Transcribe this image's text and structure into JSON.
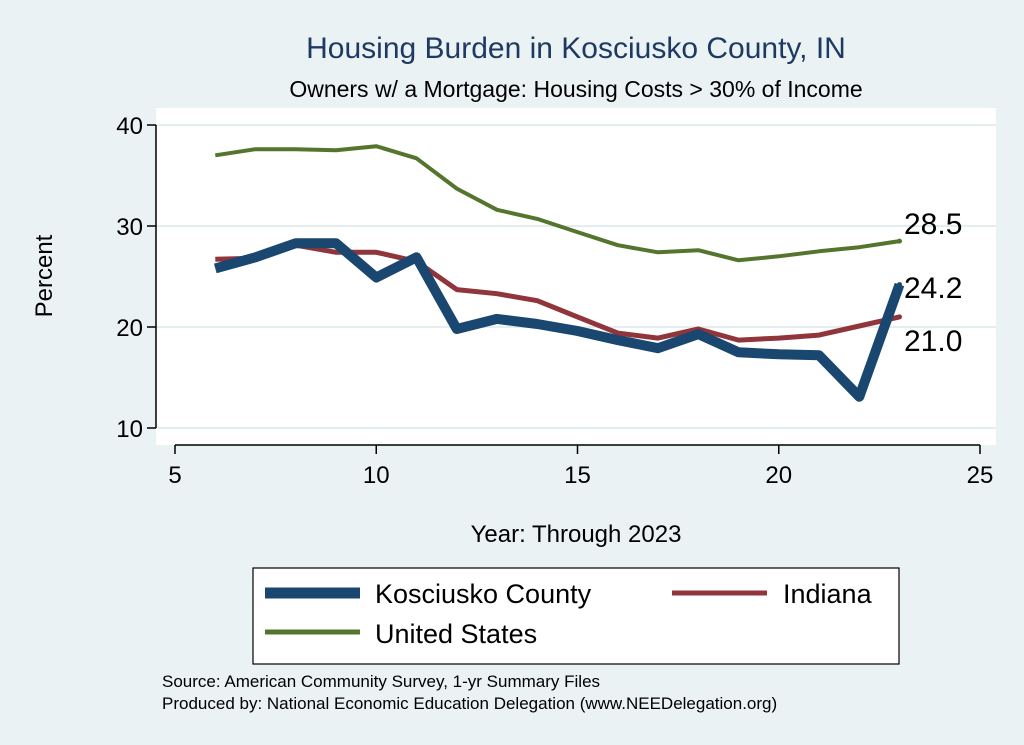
{
  "chart_data": {
    "type": "line",
    "title": "Housing Burden in Kosciusko County, IN",
    "subtitle": "Owners w/ a Mortgage: Housing Costs > 30% of Income",
    "xlabel": "Year: Through 2023",
    "ylabel": "Percent",
    "xlim": [
      5,
      25
    ],
    "ylim": [
      10,
      40
    ],
    "xticks": [
      5,
      10,
      15,
      20,
      25
    ],
    "yticks": [
      10,
      20,
      30,
      40
    ],
    "grid": true,
    "series": [
      {
        "name": "Kosciusko County",
        "color": "#1a476f",
        "x": [
          6,
          7,
          8,
          9,
          10,
          11,
          12,
          13,
          14,
          15,
          16,
          17,
          18,
          19,
          20,
          21,
          22,
          23
        ],
        "y": [
          25.8,
          26.9,
          28.3,
          28.3,
          24.9,
          26.9,
          19.8,
          20.8,
          20.3,
          19.6,
          18.7,
          17.9,
          19.3,
          17.5,
          17.3,
          17.2,
          13.1,
          24.2
        ],
        "end_label": "24.2"
      },
      {
        "name": "Indiana",
        "color": "#90353b",
        "x": [
          6,
          7,
          8,
          9,
          10,
          11,
          12,
          13,
          14,
          15,
          16,
          17,
          18,
          19,
          20,
          21,
          22,
          23
        ],
        "y": [
          26.7,
          26.8,
          28.1,
          27.4,
          27.4,
          26.5,
          23.7,
          23.3,
          22.6,
          21.0,
          19.4,
          18.9,
          19.8,
          18.7,
          18.9,
          19.2,
          20.1,
          21.0
        ],
        "end_label": "21.0"
      },
      {
        "name": "United States",
        "color": "#55752f",
        "x": [
          6,
          7,
          8,
          9,
          10,
          11,
          12,
          13,
          14,
          15,
          16,
          17,
          18,
          19,
          20,
          21,
          22,
          23
        ],
        "y": [
          37.0,
          37.6,
          37.6,
          37.5,
          37.9,
          36.7,
          33.7,
          31.6,
          30.7,
          29.4,
          28.1,
          27.4,
          27.6,
          26.6,
          27.0,
          27.5,
          27.9,
          28.5
        ],
        "end_label": "28.5"
      }
    ],
    "legend": [
      {
        "label": "Kosciusko County",
        "color": "#1a476f"
      },
      {
        "label": "Indiana",
        "color": "#90353b"
      },
      {
        "label": "United States",
        "color": "#55752f"
      }
    ],
    "notes": [
      "Source: American Community Survey, 1-yr Summary Files",
      "Produced by: National Economic Education Delegation (www.NEEDelegation.org)"
    ]
  }
}
